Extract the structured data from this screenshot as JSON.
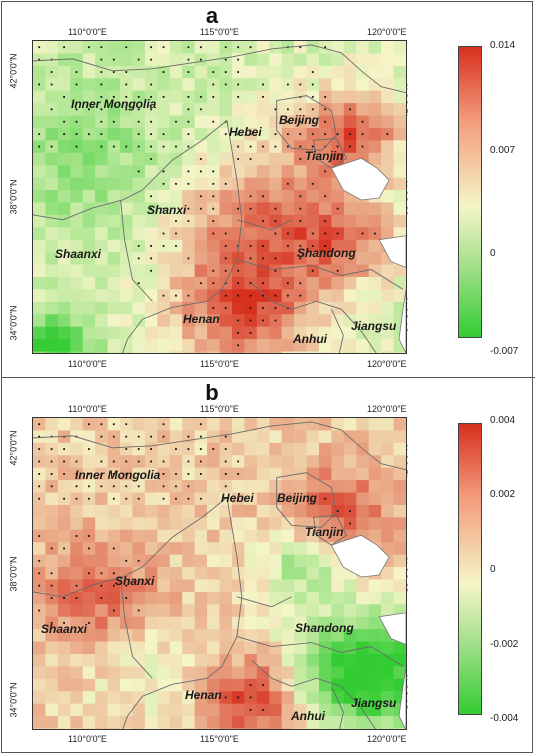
{
  "panels": [
    {
      "letter": "a",
      "lon_ticks_top": [
        "110°0'0\"E",
        "115°0'0\"E",
        "120°0'0\"E"
      ],
      "lon_ticks_bottom": [
        "110°0'0\"E",
        "115°0'0\"E",
        "120°0'0\"E"
      ],
      "lat_ticks": [
        "42°0'0\"N",
        "38°0'0\"N",
        "34°0'0\"N"
      ],
      "colorbar": {
        "ticks": [
          "0.014",
          "0.007",
          "0",
          "-0.007"
        ],
        "max": 0.014,
        "min": -0.007,
        "colors": {
          "high": "#d7301f",
          "mid": "#f5f5c8",
          "low": "#33cc33"
        }
      },
      "provinces": [
        "Inner Mongolia",
        "Hebei",
        "Beijing",
        "Tianjin",
        "Shanxi",
        "Shaanxi",
        "Shandong",
        "Henan",
        "Anhui",
        "Jiangsu"
      ]
    },
    {
      "letter": "b",
      "lon_ticks_top": [
        "110°0'0\"E",
        "115°0'0\"E",
        "120°0'0\"E"
      ],
      "lon_ticks_bottom": [
        "110°0'0\"E",
        "115°0'0\"E",
        "120°0'0\"E"
      ],
      "lat_ticks": [
        "42°0'0\"N",
        "38°0'0\"N",
        "34°0'0\"N"
      ],
      "colorbar": {
        "ticks": [
          "0.004",
          "0.002",
          "0",
          "-0.002",
          "-0.004"
        ],
        "max": 0.004,
        "min": -0.004,
        "colors": {
          "high": "#d7301f",
          "mid": "#f5f5c8",
          "low": "#33cc33"
        }
      },
      "provinces": [
        "Inner Mongolia",
        "Hebei",
        "Beijing",
        "Tianjin",
        "Shanxi",
        "Shaanxi",
        "Shandong",
        "Henan",
        "Anhui",
        "Jiangsu"
      ]
    }
  ]
}
